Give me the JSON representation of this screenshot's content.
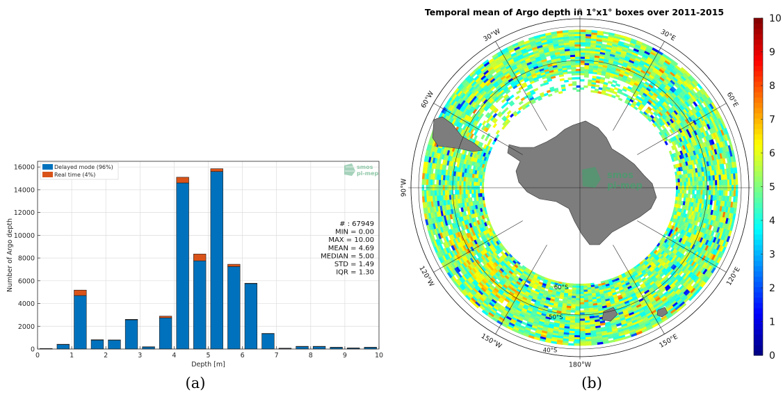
{
  "captions": {
    "left": "(a)",
    "right": "(b)"
  },
  "watermark": {
    "line1": "smos",
    "line2": "pi-mep"
  },
  "chart_data": [
    {
      "type": "bar",
      "stacked": true,
      "xlabel": "Depth [m]",
      "ylabel": "Number of Argo depth",
      "xlim": [
        0,
        10
      ],
      "ylim": [
        0,
        16500
      ],
      "grid": true,
      "legend_position": "top-left",
      "x_ticks": [
        0,
        1,
        2,
        3,
        4,
        5,
        6,
        7,
        8,
        9,
        10
      ],
      "y_ticks": [
        0,
        2000,
        4000,
        6000,
        8000,
        10000,
        12000,
        14000,
        16000
      ],
      "x": [
        0.25,
        0.75,
        1.25,
        1.75,
        2.25,
        2.75,
        3.25,
        3.75,
        4.25,
        4.75,
        5.25,
        5.75,
        6.25,
        6.75,
        7.25,
        7.75,
        8.25,
        8.75,
        9.25,
        9.75
      ],
      "bar_width": 0.36,
      "series": [
        {
          "name": "Delayed mode (96%)",
          "color": "#0072bd",
          "values": [
            40,
            400,
            4700,
            780,
            780,
            2570,
            190,
            2740,
            14600,
            7750,
            15600,
            7250,
            5750,
            1360,
            70,
            230,
            230,
            150,
            90,
            150
          ]
        },
        {
          "name": "Real time (4%)",
          "color": "#d95319",
          "values": [
            10,
            20,
            480,
            40,
            20,
            40,
            10,
            150,
            500,
            600,
            250,
            200,
            30,
            10,
            5,
            5,
            5,
            5,
            2,
            5
          ]
        }
      ],
      "stats": [
        "# : 67949",
        "MIN = 0.00",
        "MAX =  10.00",
        "MEAN = 4.69",
        "MEDIAN = 5.00",
        "STD = 1.49",
        "IQR = 1.30"
      ]
    },
    {
      "type": "heatmap",
      "projection": "south-polar-stereographic",
      "title": "Temporal mean of Argo depth in 1°x1° boxes over 2011-2015",
      "colorbar": {
        "min": 0,
        "max": 10,
        "ticks": [
          0,
          1,
          2,
          3,
          4,
          5,
          6,
          7,
          8,
          9,
          10
        ],
        "colormap": "jet"
      },
      "longitude_labels": [
        "0",
        "30°E",
        "60°E",
        "90°E",
        "120°E",
        "150°E",
        "180°W",
        "150°W",
        "120°W",
        "90°W",
        "60°W",
        "30°W"
      ],
      "latitude_labels": [
        "40°S",
        "50°S",
        "60°S"
      ],
      "typical_value": 5
    }
  ]
}
